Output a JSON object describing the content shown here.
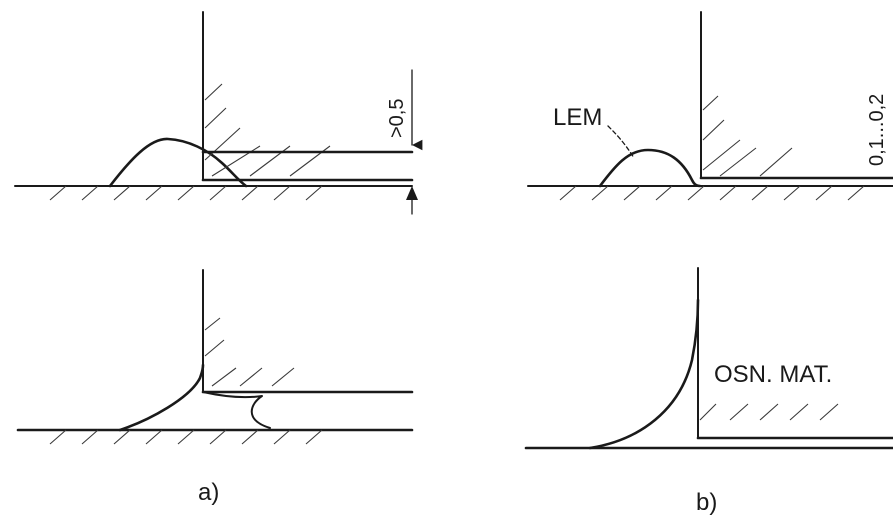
{
  "panels": {
    "a": {
      "caption": "a)",
      "dimension": ">0,5"
    },
    "b": {
      "caption": "b)",
      "dimension": "0,1...0,2",
      "solder_label": "LEM",
      "base_label": "OSN. MAT."
    }
  }
}
